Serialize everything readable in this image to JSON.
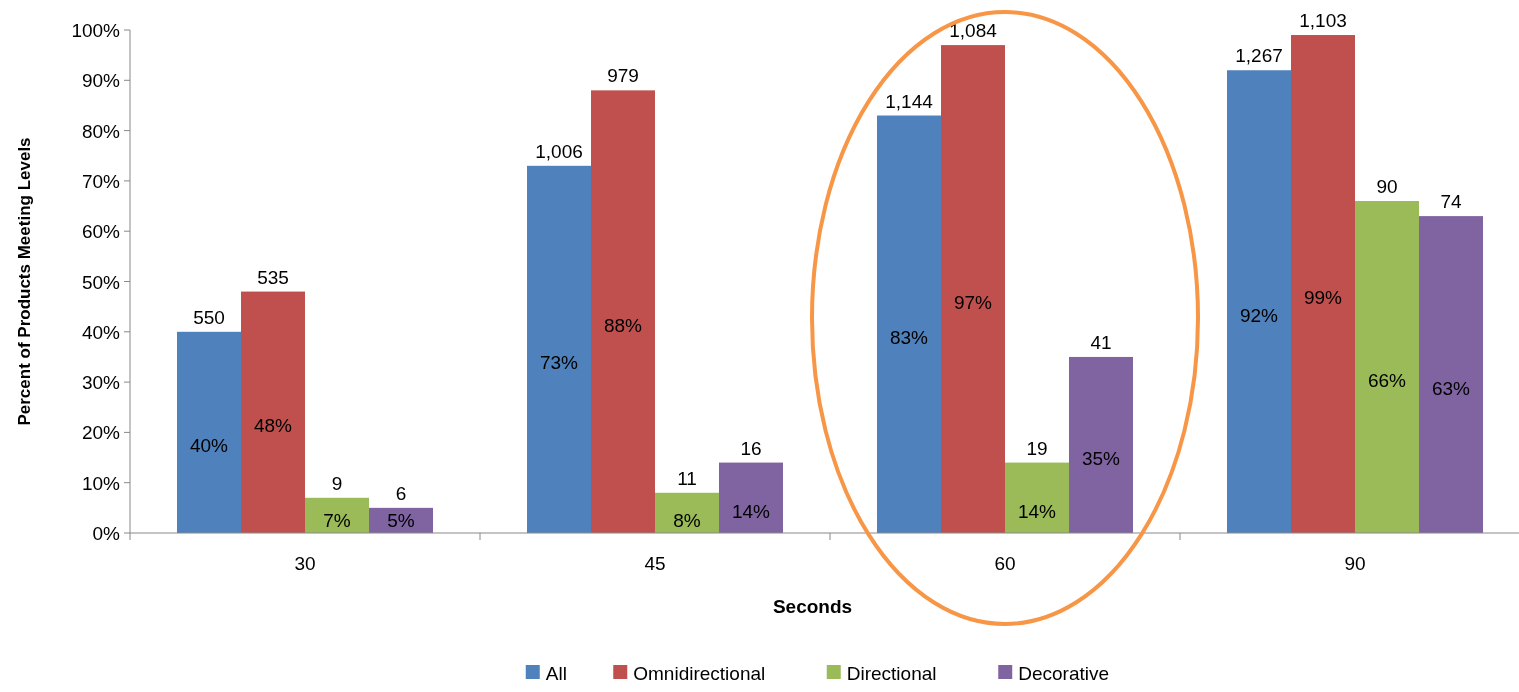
{
  "chart_data": {
    "type": "bar",
    "xlabel": "Seconds",
    "ylabel": "Percent of Products Meeting Levels",
    "categories": [
      "30",
      "45",
      "60",
      "90"
    ],
    "series": [
      {
        "name": "All",
        "color": "#4f81bd",
        "values": [
          40,
          73,
          83,
          92
        ],
        "value_labels": [
          "40%",
          "73%",
          "83%",
          "92%"
        ]
      },
      {
        "name": "Omnidirectional",
        "color": "#c0504d",
        "values": [
          48,
          88,
          97,
          99
        ],
        "value_labels": [
          "48%",
          "88%",
          "97%",
          "99%"
        ]
      },
      {
        "name": "Directional",
        "color": "#9bbb59",
        "values": [
          7,
          8,
          14,
          66
        ],
        "value_labels": [
          "7%",
          "8%",
          "14%",
          "66%"
        ]
      },
      {
        "name": "Decorative",
        "color": "#8064a2",
        "values": [
          5,
          14,
          35,
          63
        ],
        "value_labels": [
          "5%",
          "14%",
          "35%",
          "63%"
        ]
      }
    ],
    "annotations": [
      "550",
      "1,006",
      "1,144",
      "1,267",
      "535",
      "979",
      "1,084",
      "1,103",
      "9",
      "11",
      "19",
      "90",
      "6",
      "16",
      "41",
      "74"
    ],
    "ylim": [
      0,
      100
    ],
    "yticks": [
      {
        "value": 0,
        "label": "0%"
      },
      {
        "value": 10,
        "label": "10%"
      },
      {
        "value": 20,
        "label": "20%"
      },
      {
        "value": 30,
        "label": "30%"
      },
      {
        "value": 40,
        "label": "40%"
      },
      {
        "value": 50,
        "label": "50%"
      },
      {
        "value": 60,
        "label": "60%"
      },
      {
        "value": 70,
        "label": "70%"
      },
      {
        "value": 80,
        "label": "80%"
      },
      {
        "value": 90,
        "label": "90%"
      },
      {
        "value": 100,
        "label": "100%"
      }
    ],
    "legend": "bottom"
  }
}
